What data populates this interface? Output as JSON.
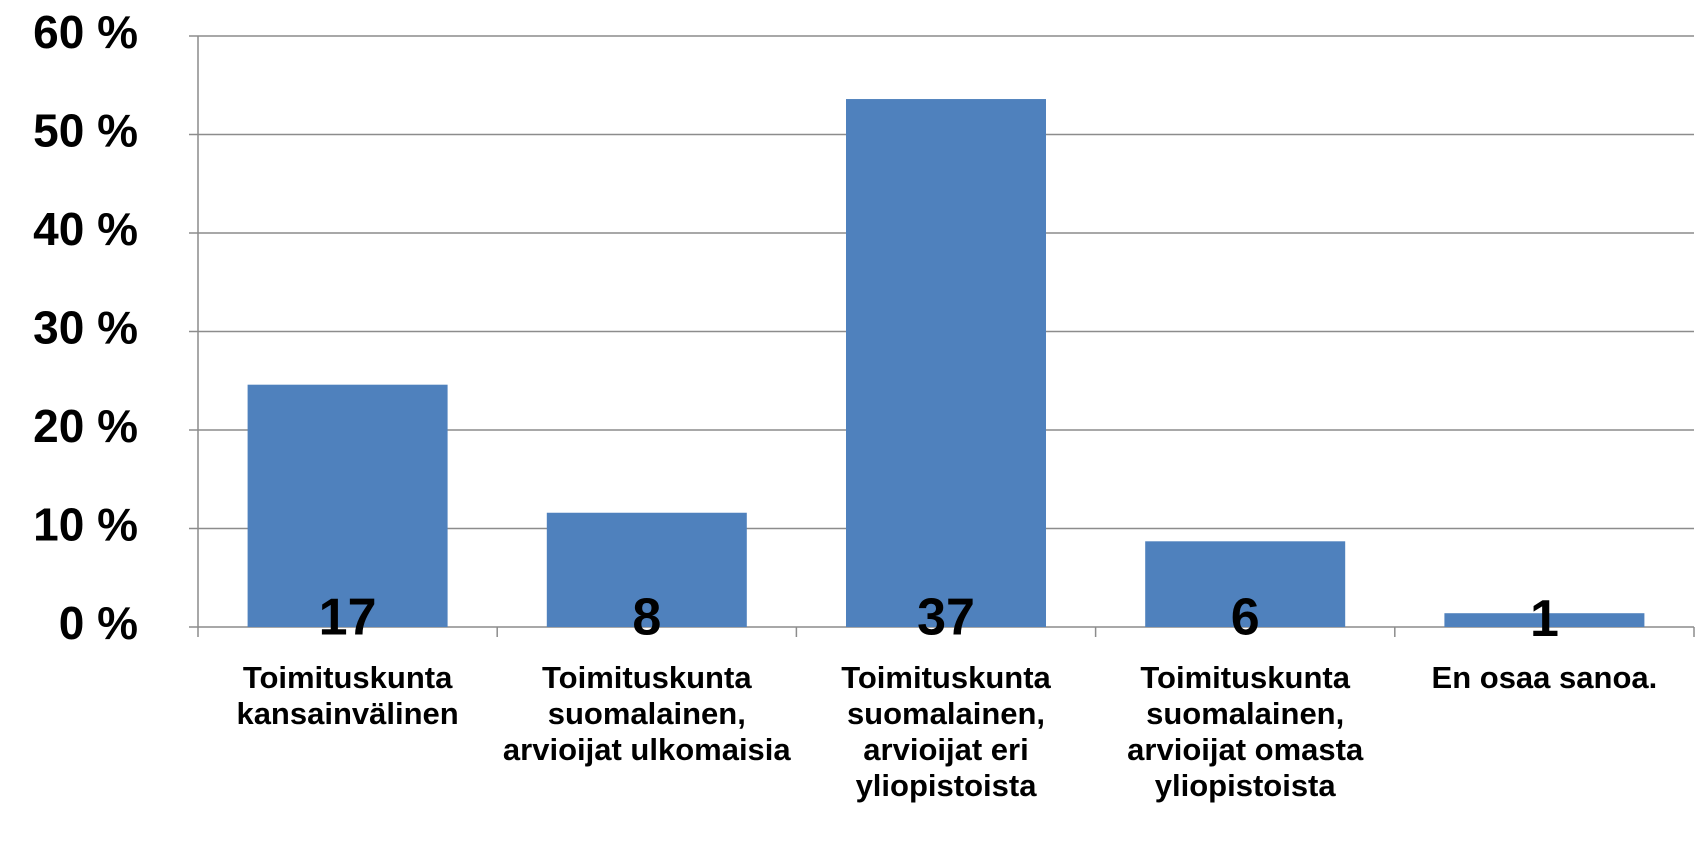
{
  "chart_data": {
    "type": "bar",
    "categories": [
      "Toimituskunta kansainvälinen",
      "Toimituskunta suomalainen, arvioijat ulkomaisia",
      "Toimituskunta suomalainen, arvioijat eri yliopistoista",
      "Toimituskunta suomalainen, arvioijat omasta yliopistoista",
      "En osaa sanoa."
    ],
    "values": [
      24.6,
      11.6,
      53.6,
      8.7,
      1.4
    ],
    "counts": [
      17,
      8,
      37,
      6,
      1
    ],
    "color": "#4f81bd",
    "ylim": [
      0,
      60
    ],
    "yticks": [
      {
        "value": 0,
        "label": "0 %"
      },
      {
        "value": 10,
        "label": "10 %"
      },
      {
        "value": 20,
        "label": "20 %"
      },
      {
        "value": 30,
        "label": "30 %"
      },
      {
        "value": 40,
        "label": "40 %"
      },
      {
        "value": 50,
        "label": "50 %"
      },
      {
        "value": 60,
        "label": "60 %"
      }
    ],
    "grid": true
  }
}
